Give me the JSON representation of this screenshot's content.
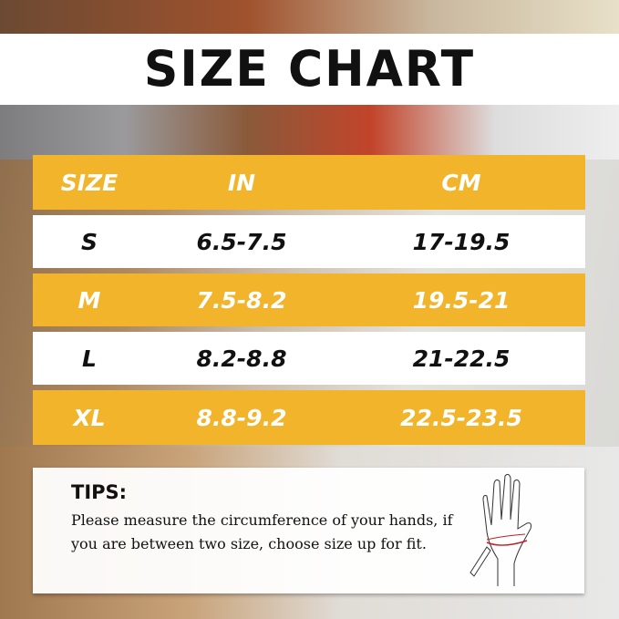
{
  "title": "SIZE CHART",
  "table": {
    "headers": [
      "SIZE",
      "IN",
      "CM"
    ],
    "rows": [
      [
        "S",
        "6.5-7.5",
        "17-19.5"
      ],
      [
        "M",
        "7.5-8.2",
        "19.5-21"
      ],
      [
        "L",
        "8.2-8.8",
        "21-22.5"
      ],
      [
        "XL",
        "8.8-9.2",
        "22.5-23.5"
      ]
    ]
  },
  "tips": {
    "heading": "TIPS:",
    "text": "Please measure the circumference of your hands, if you are between two size, choose size up for fit."
  },
  "colors": {
    "accent": "#f2b42a",
    "measure_line": "#c0202a"
  },
  "icons": [
    "hand-measure-icon"
  ]
}
